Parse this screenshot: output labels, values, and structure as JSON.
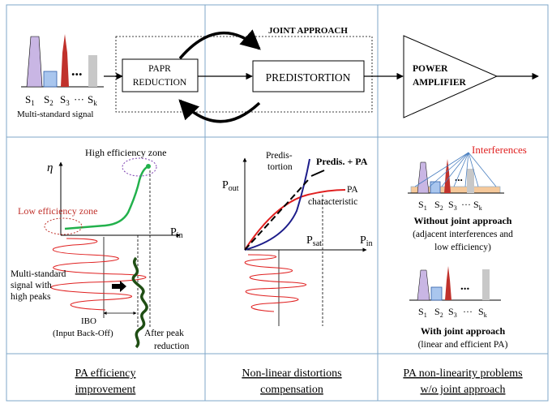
{
  "top_row": {
    "signal_label": "Multi-standard signal",
    "signal_ellipsis": "...",
    "signal_subscripts": [
      {
        "base": "S",
        "sub": "1"
      },
      {
        "base": "S",
        "sub": "2"
      },
      {
        "base": "S",
        "sub": "3"
      },
      {
        "base": "S",
        "sub": "k"
      }
    ],
    "signal_dots": "···",
    "papr_line1": "PAPR",
    "papr_line2": "REDUCTION",
    "joint_approach": "JOINT APPROACH",
    "predistortion": "PREDISTORTION",
    "power_line1": "POWER",
    "power_line2": "AMPLIFIER"
  },
  "panel_efficiency": {
    "eta": "η",
    "high_zone": "High efficiency zone",
    "low_zone": "Low efficiency zone",
    "pin_base": "P",
    "pin_sub": "in",
    "ms_line1": "Multi-standard",
    "ms_line2": "signal with",
    "ms_line3": "high peaks",
    "ibo": "IBO",
    "ibo_long": "(Input Back-Off)",
    "after_line1": "After peak",
    "after_line2": "reduction",
    "caption_line1": "PA efficiency",
    "caption_line2": "improvement"
  },
  "panel_nonlinear": {
    "predis_line1": "Predis-",
    "predis_line2": "tortion",
    "predis_pa": "Predis. + PA",
    "pout_base": "P",
    "pout_sub": "out",
    "pa_line1": "PA",
    "pa_line2": "characteristic",
    "psat_base": "P",
    "psat_sub": "sat",
    "pin_base": "P",
    "pin_sub": "in",
    "caption_line1": "Non-linear distortions",
    "caption_line2": "compensation"
  },
  "panel_joint": {
    "interferences": "Interferences",
    "without_title": "Without joint approach",
    "without_line1": "(adjacent interferences and",
    "without_line2": "low efficiency)",
    "with_title": "With joint approach",
    "with_line1": "(linear and efficient PA)",
    "caption_line1": "PA non-linearity problems",
    "caption_line2": "w/o joint approach"
  },
  "colors": {
    "lavender": "#c9b6e4",
    "blue_box": "#a9c6ee",
    "red_bar": "#c0312b",
    "grey_bar": "#c8c8c8",
    "green_curve": "#22b14c",
    "dark_green": "#1f4e14",
    "red_line": "#e02020",
    "navy": "#1d1d8a",
    "orange_band": "#f5c89a",
    "purple_ellipse": "#7b3fb0"
  }
}
